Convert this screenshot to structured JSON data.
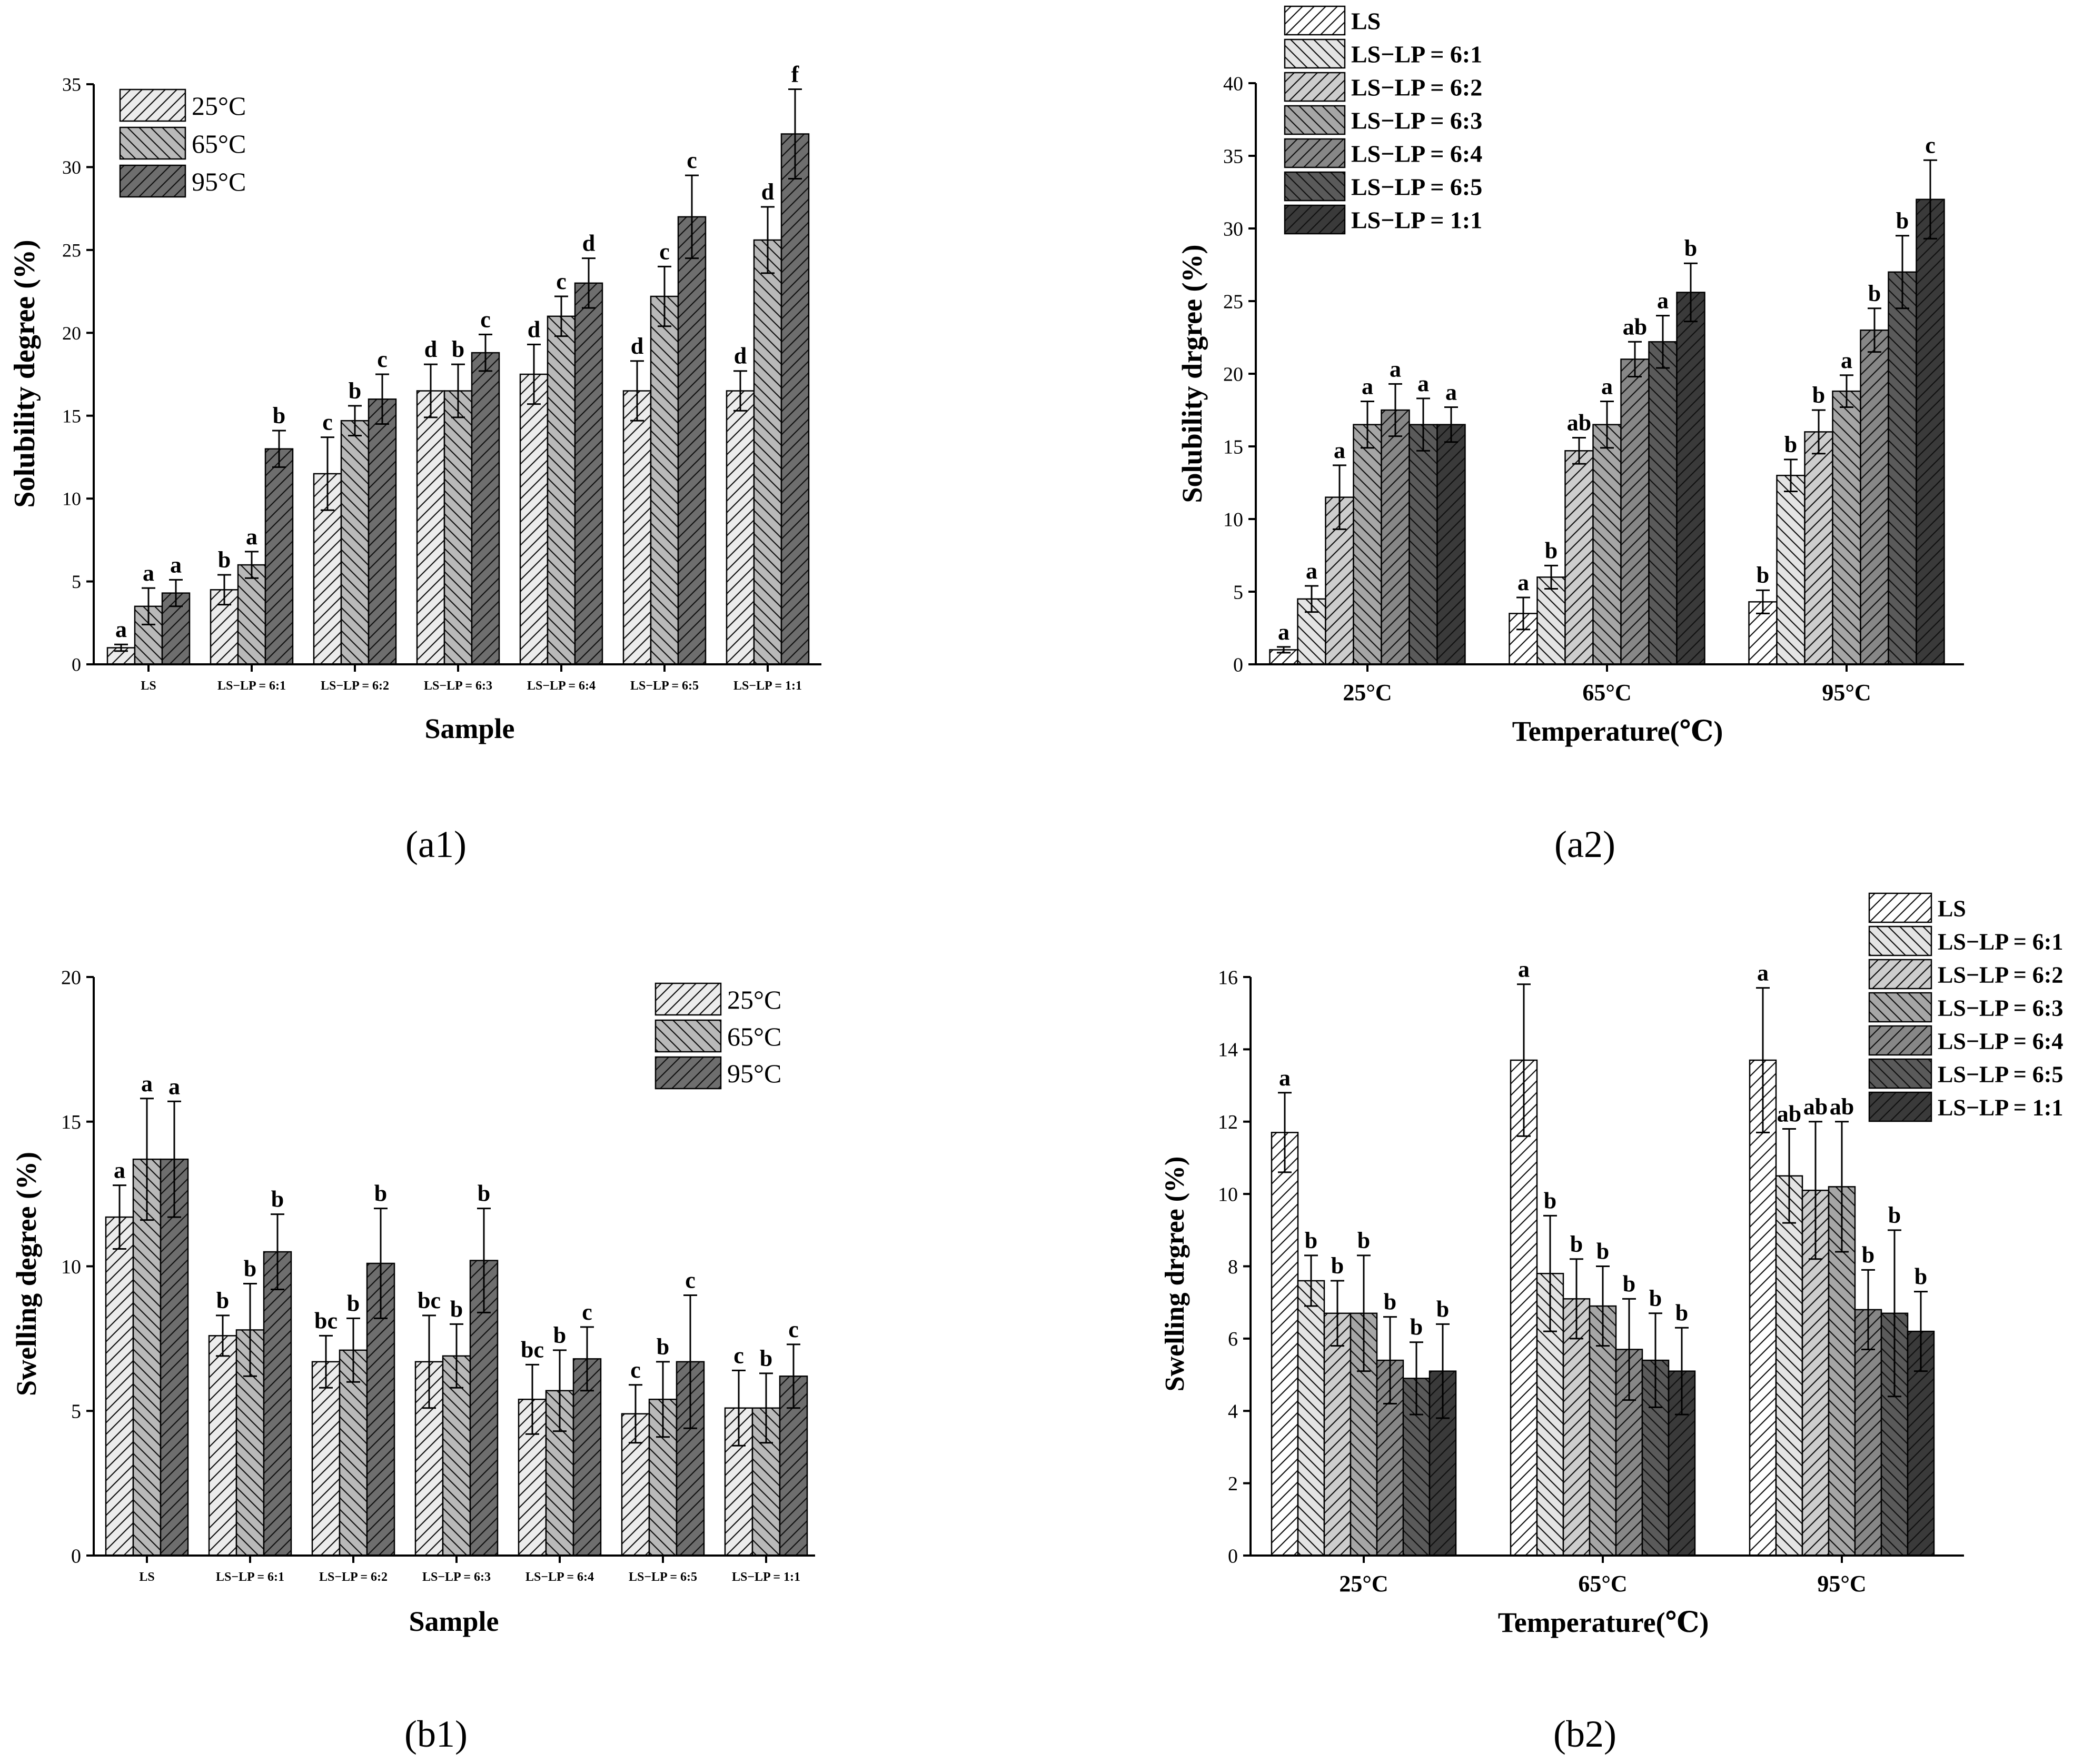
{
  "chart_data": [
    {
      "id": "a1",
      "type": "bar",
      "panel_label": "(a1)",
      "title": "",
      "xlabel": "Sample",
      "ylabel": "Solubility degree (%)",
      "ylim": [
        0,
        35
      ],
      "yticks": [
        0,
        5,
        10,
        15,
        20,
        25,
        30,
        35
      ],
      "categories": [
        "LS",
        "LS−LP = 6:1",
        "LS−LP = 6:2",
        "LS−LP = 6:3",
        "LS−LP = 6:4",
        "LS−LP = 6:5",
        "LS−LP = 1:1"
      ],
      "legend_position": "top-left",
      "series": [
        {
          "name": "25°C",
          "values": [
            1.0,
            4.5,
            11.5,
            16.5,
            17.5,
            16.5,
            16.5
          ],
          "errors": [
            0.2,
            0.9,
            2.2,
            1.6,
            1.8,
            1.8,
            1.2
          ],
          "letters": [
            "a",
            "b",
            "c",
            "d",
            "d",
            "d",
            "d"
          ]
        },
        {
          "name": "65°C",
          "values": [
            3.5,
            6.0,
            14.7,
            16.5,
            21.0,
            22.2,
            25.6
          ],
          "errors": [
            1.1,
            0.8,
            0.9,
            1.6,
            1.2,
            1.8,
            2.0
          ],
          "letters": [
            "a",
            "a",
            "b",
            "b",
            "c",
            "c",
            "d"
          ]
        },
        {
          "name": "95°C",
          "values": [
            4.3,
            13.0,
            16.0,
            18.8,
            23.0,
            27.0,
            32.0
          ],
          "errors": [
            0.8,
            1.1,
            1.5,
            1.1,
            1.5,
            2.5,
            2.7
          ],
          "letters": [
            "a",
            "b",
            "c",
            "c",
            "d",
            "c",
            "f"
          ]
        }
      ]
    },
    {
      "id": "a2",
      "type": "bar",
      "panel_label": "(a2)",
      "title": "",
      "xlabel": "Temperature(℃)",
      "ylabel": "Solubility drgree (%)",
      "ylim": [
        0,
        40
      ],
      "yticks": [
        0,
        5,
        10,
        15,
        20,
        25,
        30,
        35,
        40
      ],
      "categories": [
        "25°C",
        "65°C",
        "95°C"
      ],
      "legend_position": "top-left",
      "series": [
        {
          "name": "LS",
          "values": [
            1.0,
            3.5,
            4.3
          ],
          "errors": [
            0.2,
            1.1,
            0.8
          ],
          "letters": [
            "a",
            "a",
            "b"
          ]
        },
        {
          "name": "LS−LP = 6:1",
          "values": [
            4.5,
            6.0,
            13.0
          ],
          "errors": [
            0.9,
            0.8,
            1.1
          ],
          "letters": [
            "a",
            "b",
            "b"
          ]
        },
        {
          "name": "LS−LP = 6:2",
          "values": [
            11.5,
            14.7,
            16.0
          ],
          "errors": [
            2.2,
            0.9,
            1.5
          ],
          "letters": [
            "a",
            "ab",
            "b"
          ]
        },
        {
          "name": "LS−LP = 6:3",
          "values": [
            16.5,
            16.5,
            18.8
          ],
          "errors": [
            1.6,
            1.6,
            1.1
          ],
          "letters": [
            "a",
            "a",
            "a"
          ]
        },
        {
          "name": "LS−LP = 6:4",
          "values": [
            17.5,
            21.0,
            23.0
          ],
          "errors": [
            1.8,
            1.2,
            1.5
          ],
          "letters": [
            "a",
            "ab",
            "b"
          ]
        },
        {
          "name": "LS−LP = 6:5",
          "values": [
            16.5,
            22.2,
            27.0
          ],
          "errors": [
            1.8,
            1.8,
            2.5
          ],
          "letters": [
            "a",
            "a",
            "b"
          ]
        },
        {
          "name": "LS−LP = 1:1",
          "values": [
            16.5,
            25.6,
            32.0
          ],
          "errors": [
            1.2,
            2.0,
            2.7
          ],
          "letters": [
            "a",
            "b",
            "c"
          ]
        }
      ]
    },
    {
      "id": "b1",
      "type": "bar",
      "panel_label": "(b1)",
      "title": "",
      "xlabel": "Sample",
      "ylabel": "Swelling degree (%)",
      "ylim": [
        0,
        20
      ],
      "yticks": [
        0,
        5,
        10,
        15,
        20
      ],
      "categories": [
        "LS",
        "LS−LP = 6:1",
        "LS−LP = 6:2",
        "LS−LP = 6:3",
        "LS−LP = 6:4",
        "LS−LP = 6:5",
        "LS−LP = 1:1"
      ],
      "legend_position": "top-right",
      "series": [
        {
          "name": "25°C",
          "values": [
            11.7,
            7.6,
            6.7,
            6.7,
            5.4,
            4.9,
            5.1
          ],
          "errors": [
            1.1,
            0.7,
            0.9,
            1.6,
            1.2,
            1.0,
            1.3
          ],
          "letters": [
            "a",
            "b",
            "bc",
            "bc",
            "bc",
            "c",
            "c"
          ]
        },
        {
          "name": "65°C",
          "values": [
            13.7,
            7.8,
            7.1,
            6.9,
            5.7,
            5.4,
            5.1
          ],
          "errors": [
            2.1,
            1.6,
            1.1,
            1.1,
            1.4,
            1.3,
            1.2
          ],
          "letters": [
            "a",
            "b",
            "b",
            "b",
            "b",
            "b",
            "b"
          ]
        },
        {
          "name": "95°C",
          "values": [
            13.7,
            10.5,
            10.1,
            10.2,
            6.8,
            6.7,
            6.2
          ],
          "errors": [
            2.0,
            1.3,
            1.9,
            1.8,
            1.1,
            2.3,
            1.1
          ],
          "letters": [
            "a",
            "b",
            "b",
            "b",
            "c",
            "c",
            "c"
          ]
        }
      ]
    },
    {
      "id": "b2",
      "type": "bar",
      "panel_label": "(b2)",
      "title": "",
      "xlabel": "Temperature(℃)",
      "ylabel": "Swelling drgree (%)",
      "ylim": [
        0,
        16
      ],
      "yticks": [
        0,
        2,
        4,
        6,
        8,
        10,
        12,
        14,
        16
      ],
      "categories": [
        "25°C",
        "65°C",
        "95°C"
      ],
      "legend_position": "top-right",
      "series": [
        {
          "name": "LS",
          "values": [
            11.7,
            13.7,
            13.7
          ],
          "errors": [
            1.1,
            2.1,
            2.0
          ],
          "letters": [
            "a",
            "a",
            "a"
          ]
        },
        {
          "name": "LS−LP = 6:1",
          "values": [
            7.6,
            7.8,
            10.5
          ],
          "errors": [
            0.7,
            1.6,
            1.3
          ],
          "letters": [
            "b",
            "b",
            "ab"
          ]
        },
        {
          "name": "LS−LP = 6:2",
          "values": [
            6.7,
            7.1,
            10.1
          ],
          "errors": [
            0.9,
            1.1,
            1.9
          ],
          "letters": [
            "b",
            "b",
            "ab"
          ]
        },
        {
          "name": "LS−LP = 6:3",
          "values": [
            6.7,
            6.9,
            10.2
          ],
          "errors": [
            1.6,
            1.1,
            1.8
          ],
          "letters": [
            "b",
            "b",
            "ab"
          ]
        },
        {
          "name": "LS−LP = 6:4",
          "values": [
            5.4,
            5.7,
            6.8
          ],
          "errors": [
            1.2,
            1.4,
            1.1
          ],
          "letters": [
            "b",
            "b",
            "b"
          ]
        },
        {
          "name": "LS−LP = 6:5",
          "values": [
            4.9,
            5.4,
            6.7
          ],
          "errors": [
            1.0,
            1.3,
            2.3
          ],
          "letters": [
            "b",
            "b",
            "b"
          ]
        },
        {
          "name": "LS−LP = 1:1",
          "values": [
            5.1,
            5.1,
            6.2
          ],
          "errors": [
            1.3,
            1.2,
            1.1
          ],
          "letters": [
            "b",
            "b",
            "b"
          ]
        }
      ]
    }
  ],
  "colors": {
    "three_level": [
      "#ececec",
      "#b9b9b9",
      "#6e6e6e"
    ],
    "seven_level": [
      "#ffffff",
      "#e4e4e4",
      "#cdcdcd",
      "#a6a6a6",
      "#878787",
      "#5a5a5a",
      "#3a3a3a"
    ]
  }
}
